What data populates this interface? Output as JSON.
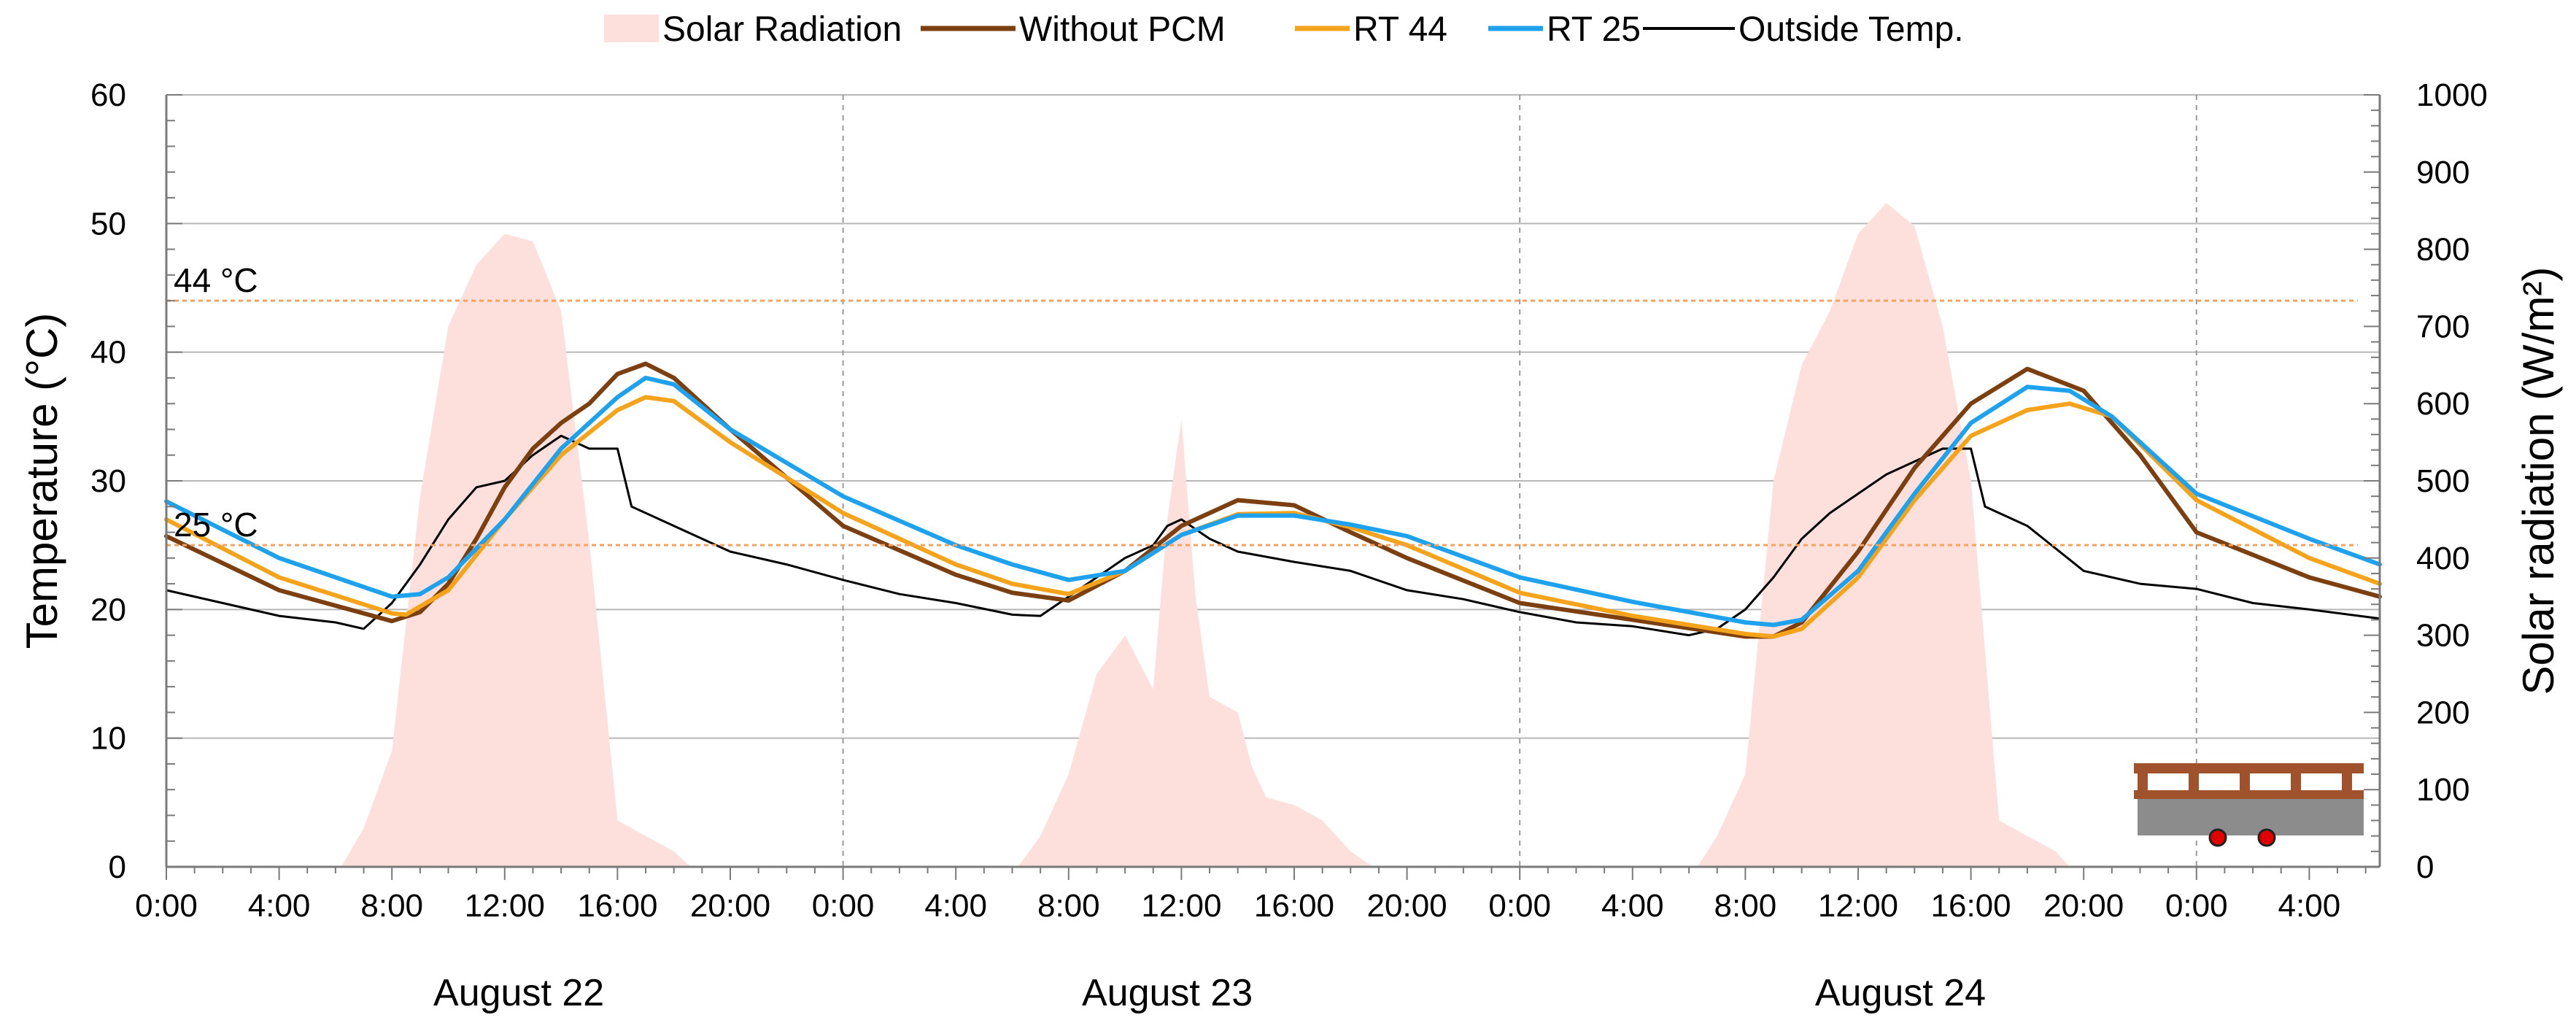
{
  "chart_data": {
    "type": "line",
    "title": "",
    "legend": [
      {
        "label": "Solar Radiation",
        "color": "#fde0db",
        "kind": "area"
      },
      {
        "label": "Without PCM",
        "color": "#7b3f10",
        "kind": "line"
      },
      {
        "label": "RT 44",
        "color": "#f5a31a",
        "kind": "line"
      },
      {
        "label": "RT 25",
        "color": "#1fa2ee",
        "kind": "line"
      },
      {
        "label": "Outside Temp.",
        "color": "#000000",
        "kind": "line"
      }
    ],
    "legend_position": "top-center",
    "ylabel_left": "Temperature (°C)",
    "ylabel_right": "Solar radiation (W/m²)",
    "ylim_left": [
      0,
      60
    ],
    "ylim_right": [
      0,
      1000
    ],
    "yticks_left": [
      "0",
      "10",
      "20",
      "30",
      "40",
      "50",
      "60"
    ],
    "yticks_right": [
      "0",
      "100",
      "200",
      "300",
      "400",
      "500",
      "600",
      "700",
      "800",
      "900",
      "1000"
    ],
    "x_unit": "hours from August 22 0:00",
    "xlim": [
      0,
      78.5
    ],
    "xtick_hours": [
      0,
      4,
      8,
      12,
      16,
      20,
      24,
      28,
      32,
      36,
      40,
      44,
      48,
      52,
      56,
      60,
      64,
      68,
      72,
      76
    ],
    "xtick_labels": [
      "0:00",
      "4:00",
      "8:00",
      "12:00",
      "16:00",
      "20:00",
      "0:00",
      "4:00",
      "8:00",
      "12:00",
      "16:00",
      "20:00",
      "0:00",
      "4:00",
      "8:00",
      "12:00",
      "16:00",
      "20:00",
      "0:00",
      "4:00"
    ],
    "day_separators": [
      24,
      48,
      72
    ],
    "date_labels": [
      {
        "text": "August 22",
        "hour": 12.5
      },
      {
        "text": "August 23",
        "hour": 35.5
      },
      {
        "text": "August 24",
        "hour": 61.5
      }
    ],
    "reference_lines": [
      {
        "value": 44,
        "label": "44 °C",
        "color": "#f4a261"
      },
      {
        "value": 25,
        "label": "25 °C",
        "color": "#f4a261"
      }
    ],
    "solar_radiation": {
      "x": [
        0,
        6.2,
        7,
        8,
        9,
        10,
        11,
        12,
        13,
        14,
        15,
        16,
        17,
        18,
        18.6,
        30.2,
        31,
        32,
        33,
        34,
        35,
        35.5,
        36,
        36.5,
        37,
        38,
        38.5,
        39,
        40,
        41,
        42,
        42.8,
        54.3,
        55,
        56,
        57,
        58,
        59,
        60,
        61,
        62,
        63,
        64,
        65,
        66,
        67,
        67.5,
        78.5
      ],
      "y": [
        0,
        0,
        50,
        150,
        480,
        700,
        780,
        820,
        810,
        720,
        420,
        60,
        40,
        20,
        0,
        0,
        40,
        120,
        250,
        300,
        230,
        450,
        580,
        350,
        220,
        200,
        130,
        90,
        80,
        60,
        20,
        0,
        0,
        40,
        120,
        500,
        650,
        720,
        820,
        860,
        830,
        700,
        500,
        60,
        40,
        20,
        0,
        0
      ]
    },
    "series": [
      {
        "name": "Without PCM",
        "x": [
          0,
          4,
          8,
          9,
          10,
          11,
          12,
          13,
          14,
          15,
          16,
          17,
          18,
          20,
          24,
          28,
          30,
          32,
          34,
          36,
          38,
          40,
          42,
          44,
          48,
          52,
          56,
          57,
          58,
          60,
          62,
          64,
          66,
          68,
          70,
          72,
          76,
          78.5
        ],
        "y": [
          25.7,
          21.5,
          19.1,
          19.8,
          22.0,
          25.5,
          29.5,
          32.5,
          34.5,
          36.0,
          38.3,
          39.1,
          38.0,
          34.0,
          26.5,
          22.7,
          21.3,
          20.7,
          23.0,
          26.5,
          28.5,
          28.1,
          26.0,
          24.0,
          20.5,
          19.2,
          17.9,
          17.9,
          19.0,
          24.5,
          31.0,
          36.0,
          38.7,
          37.0,
          32.0,
          26.0,
          22.5,
          21.0
        ]
      },
      {
        "name": "RT 44",
        "x": [
          0,
          4,
          8,
          8.5,
          10,
          12,
          14,
          16,
          17,
          18,
          20,
          24,
          28,
          30,
          32,
          34,
          36,
          38,
          40,
          42,
          44,
          48,
          52,
          56,
          57,
          58,
          60,
          62,
          64,
          66,
          67.5,
          69,
          72,
          76,
          78.5
        ],
        "y": [
          27.0,
          22.5,
          19.7,
          19.6,
          21.5,
          27.0,
          32.0,
          35.5,
          36.5,
          36.2,
          33.0,
          27.5,
          23.5,
          22.0,
          21.2,
          23.0,
          25.8,
          27.4,
          27.5,
          26.4,
          25.0,
          21.3,
          19.5,
          18.1,
          17.9,
          18.5,
          22.5,
          28.5,
          33.5,
          35.5,
          36.0,
          35.0,
          28.5,
          24.0,
          22.0
        ]
      },
      {
        "name": "RT 25",
        "x": [
          0,
          4,
          8,
          9,
          10,
          12,
          14,
          16,
          17,
          18,
          20,
          24,
          28,
          30,
          32,
          34,
          36,
          38,
          40,
          42,
          44,
          48,
          52,
          56,
          57,
          58,
          60,
          62,
          64,
          66,
          67.5,
          69,
          72,
          76,
          78.5
        ],
        "y": [
          28.4,
          24.0,
          21.0,
          21.2,
          22.5,
          27.0,
          32.5,
          36.5,
          38.0,
          37.5,
          34.0,
          28.8,
          25.0,
          23.5,
          22.3,
          23.0,
          25.8,
          27.3,
          27.3,
          26.6,
          25.7,
          22.5,
          20.6,
          19.0,
          18.8,
          19.2,
          23.0,
          29.0,
          34.5,
          37.3,
          37.0,
          35.0,
          29.0,
          25.5,
          23.5
        ]
      },
      {
        "name": "Outside Temp.",
        "x": [
          0,
          2,
          4,
          6,
          7,
          8,
          9,
          10,
          11,
          12,
          13,
          14,
          15,
          16,
          16.5,
          18,
          20,
          22,
          24,
          26,
          28,
          30,
          31,
          32,
          33,
          34,
          35,
          35.5,
          36,
          37,
          38,
          40,
          42,
          44,
          46,
          48,
          50,
          52,
          54,
          55,
          56,
          57,
          58,
          59,
          60,
          61,
          62,
          63,
          64,
          64.5,
          66,
          68,
          70,
          72,
          74,
          76,
          78.5
        ],
        "y": [
          21.5,
          20.5,
          19.5,
          19.0,
          18.5,
          20.5,
          23.5,
          27.0,
          29.5,
          30.0,
          32.0,
          33.5,
          32.5,
          32.5,
          28.0,
          26.5,
          24.5,
          23.5,
          22.3,
          21.2,
          20.5,
          19.6,
          19.5,
          21.0,
          22.5,
          24.0,
          25.0,
          26.5,
          27.0,
          25.5,
          24.5,
          23.7,
          23.0,
          21.5,
          20.8,
          19.8,
          19.0,
          18.7,
          18.0,
          18.5,
          20.0,
          22.5,
          25.5,
          27.5,
          29.0,
          30.5,
          31.5,
          32.5,
          32.5,
          28.0,
          26.5,
          23.0,
          22.0,
          21.6,
          20.5,
          20.0,
          19.3
        ]
      }
    ]
  }
}
